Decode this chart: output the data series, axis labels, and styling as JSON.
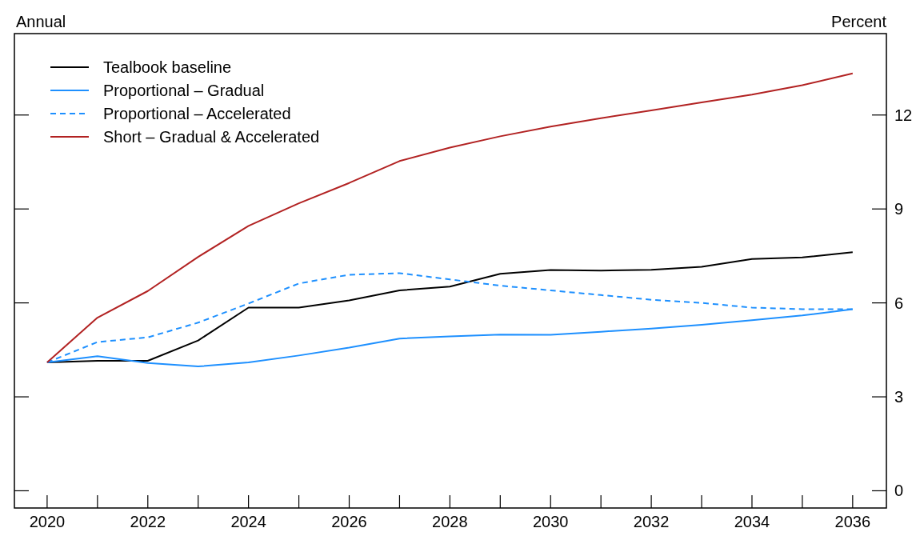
{
  "chart_data": {
    "type": "line",
    "ylabel": "Percent",
    "annotations": [
      "Annual"
    ],
    "x": [
      2020,
      2021,
      2022,
      2023,
      2024,
      2025,
      2026,
      2027,
      2028,
      2029,
      2030,
      2031,
      2032,
      2033,
      2034,
      2035,
      2036
    ],
    "xlim": [
      2019.35,
      2036.67
    ],
    "xticks": [
      2020,
      {
        "value": 2021,
        "label": null
      },
      2022,
      {
        "value": 2023,
        "label": null
      },
      2024,
      {
        "value": 2025,
        "label": null
      },
      2026,
      {
        "value": 2027,
        "label": null
      },
      2028,
      {
        "value": 2029,
        "label": null
      },
      2030,
      {
        "value": 2031,
        "label": null
      },
      2032,
      {
        "value": 2033,
        "label": null
      },
      2034,
      {
        "value": 2035,
        "label": null
      },
      2036
    ],
    "ylim": [
      -0.55,
      14.6
    ],
    "yticks": [
      0,
      3,
      6,
      9,
      12
    ],
    "legend": "top left",
    "grid": false,
    "series": [
      {
        "name": "Tealbook baseline",
        "color": "#000000",
        "line_style": "solid",
        "values": [
          4.1,
          4.15,
          4.15,
          4.8,
          5.85,
          5.85,
          6.08,
          6.4,
          6.52,
          6.93,
          7.05,
          7.03,
          7.06,
          7.15,
          7.4,
          7.45,
          7.62
        ]
      },
      {
        "name": "Proportional – Gradual",
        "color": "#1e90ff",
        "line_style": "solid",
        "values": [
          4.1,
          4.3,
          4.08,
          3.97,
          4.1,
          4.32,
          4.57,
          4.86,
          4.93,
          4.99,
          4.98,
          5.08,
          5.18,
          5.3,
          5.45,
          5.6,
          5.8
        ]
      },
      {
        "name": "Proportional – Accelerated",
        "color": "#1e90ff",
        "line_style": "dashed",
        "values": [
          4.1,
          4.75,
          4.9,
          5.37,
          5.98,
          6.62,
          6.9,
          6.95,
          6.75,
          6.55,
          6.4,
          6.25,
          6.1,
          6.0,
          5.85,
          5.8,
          5.8
        ]
      },
      {
        "name": "Short – Gradual & Accelerated",
        "color": "#b22222",
        "line_style": "solid",
        "values": [
          4.1,
          5.53,
          6.38,
          7.47,
          8.46,
          9.18,
          9.83,
          10.53,
          10.96,
          11.32,
          11.63,
          11.9,
          12.15,
          12.4,
          12.65,
          12.95,
          13.33
        ]
      }
    ]
  }
}
